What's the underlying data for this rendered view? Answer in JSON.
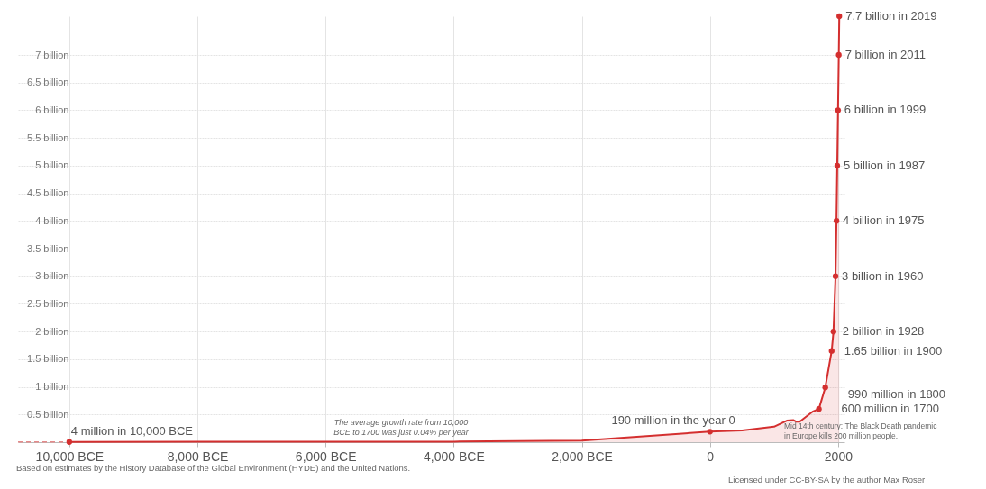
{
  "chart_data": {
    "type": "area",
    "xlim": [
      -10800,
      2100
    ],
    "ylim": [
      0,
      7.7
    ],
    "xticks": [
      {
        "value": -10000,
        "label": "10,000 BCE"
      },
      {
        "value": -8000,
        "label": "8,000 BCE"
      },
      {
        "value": -6000,
        "label": "6,000 BCE"
      },
      {
        "value": -4000,
        "label": "4,000 BCE"
      },
      {
        "value": -2000,
        "label": "2,000 BCE"
      },
      0,
      2000
    ],
    "yticks": [
      {
        "value": 0.5,
        "label": "0.5 billion"
      },
      {
        "value": 1,
        "label": "1 billion"
      },
      {
        "value": 1.5,
        "label": "1.5 billion"
      },
      {
        "value": 2,
        "label": "2 billion"
      },
      {
        "value": 2.5,
        "label": "2.5 billion"
      },
      {
        "value": 3,
        "label": "3 billion"
      },
      {
        "value": 3.5,
        "label": "3.5 billion"
      },
      {
        "value": 4,
        "label": "4 billion"
      },
      {
        "value": 4.5,
        "label": "4.5 billion"
      },
      {
        "value": 5,
        "label": "5 billion"
      },
      {
        "value": 5.5,
        "label": "5.5 billion"
      },
      {
        "value": 6,
        "label": "6 billion"
      },
      {
        "value": 6.5,
        "label": "6.5 billion"
      },
      {
        "value": 7,
        "label": "7 billion"
      }
    ],
    "grid": true,
    "series": [
      {
        "color": "#d42f2f",
        "x": [
          -10000,
          -8000,
          -6000,
          -4000,
          -2000,
          0,
          500,
          1000,
          1200,
          1300,
          1350,
          1400,
          1500,
          1600,
          1700,
          1800,
          1900,
          1928,
          1960,
          1975,
          1987,
          1999,
          2011,
          2019
        ],
        "values": [
          0.004,
          0.01,
          0.01,
          0.01,
          0.03,
          0.19,
          0.21,
          0.28,
          0.39,
          0.4,
          0.37,
          0.37,
          0.46,
          0.55,
          0.6,
          0.99,
          1.65,
          2,
          3,
          4,
          5,
          6,
          7,
          7.7
        ]
      },
      {
        "type": "line",
        "line_style": "dashed",
        "color": "#e58a8a",
        "x": [
          -10800,
          -10000
        ],
        "values": [
          0.004,
          0.004
        ]
      },
      {
        "type": "scatter",
        "marker": "circle",
        "color": "#d42f2f",
        "x": [
          -10000,
          0,
          1700,
          1800,
          1900,
          1928,
          1960,
          1975,
          1987,
          1999,
          2011,
          2019
        ],
        "values": [
          0.004,
          0.19,
          0.6,
          0.99,
          1.65,
          2,
          3,
          4,
          5,
          6,
          7,
          7.7
        ]
      }
    ],
    "annotations": [
      {
        "text": "4 million in 10,000 BCE",
        "x": -10000,
        "y": 0.004
      },
      {
        "text": "190 million in the year 0",
        "x": 0,
        "y": 0.19
      },
      {
        "text": "600 million in 1700",
        "x": 1700,
        "y": 0.6
      },
      {
        "text": "990 million in 1800",
        "x": 1800,
        "y": 0.99
      },
      {
        "text": "1.65 billion in 1900",
        "x": 1900,
        "y": 1.65
      },
      {
        "text": "2 billion in 1928",
        "x": 1928,
        "y": 2
      },
      {
        "text": "3 billion in 1960",
        "x": 1960,
        "y": 3
      },
      {
        "text": "4 billion in 1975",
        "x": 1975,
        "y": 4
      },
      {
        "text": "5 billion in 1987",
        "x": 1987,
        "y": 5
      },
      {
        "text": "6 billion in 1999",
        "x": 1999,
        "y": 6
      },
      {
        "text": "7 billion in 2011",
        "x": 2011,
        "y": 7
      },
      {
        "text": "7.7 billion in 2019",
        "x": 2019,
        "y": 7.7
      },
      "The average growth rate from 10,000 BCE to 1700 was just 0.04% per year",
      "Mid 14th century: The Black Death pandemic in Europe kills 200 million people.",
      "Based on estimates by the History Database of the Global Environment (HYDE) and the United Nations.",
      "Licensed under CC-BY-SA by the author Max Roser"
    ]
  }
}
